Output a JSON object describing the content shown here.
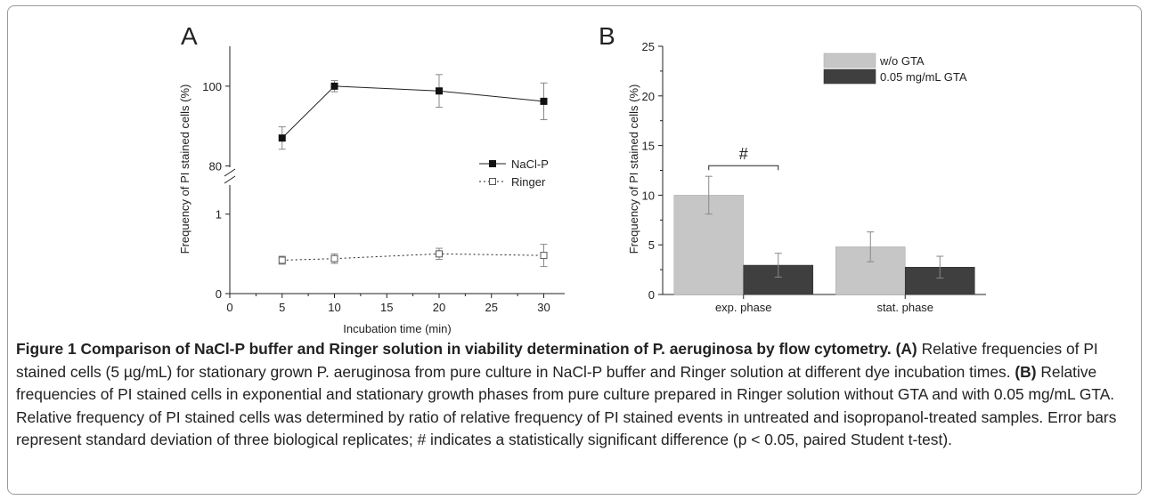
{
  "colors": {
    "frame": "#9a9a9a",
    "axis": "#222222",
    "error_bar": "#888888",
    "bar_light": "#c6c6c6",
    "bar_dark": "#3f3f3f"
  },
  "chart_data": [
    {
      "panel": "A",
      "type": "line",
      "xlabel": "Incubation time (min)",
      "ylabel": "Frequency of PI stained cells (%)",
      "xlim": [
        0,
        32
      ],
      "xticks": [
        "0",
        "5",
        "10",
        "15",
        "20",
        "25",
        "30"
      ],
      "yticks_lower": [
        "0",
        "1"
      ],
      "yticks_upper": [
        "80",
        "100"
      ],
      "ylim_lower": [
        0,
        1.5
      ],
      "ylim_upper": [
        77,
        110
      ],
      "broken_axis": true,
      "legend_position": "right",
      "series": [
        {
          "name": "NaCl-P",
          "segment": "upper",
          "marker": "filled-square",
          "line": "solid",
          "x": [
            5,
            10,
            20,
            30
          ],
          "y": [
            87,
            100,
            98.8,
            96.2
          ],
          "error": [
            2.8,
            1.4,
            4.1,
            4.6
          ]
        },
        {
          "name": "Ringer",
          "segment": "lower",
          "marker": "open-square",
          "line": "dotted",
          "x": [
            5,
            10,
            20,
            30
          ],
          "y": [
            0.42,
            0.44,
            0.5,
            0.48
          ],
          "error": [
            0.05,
            0.06,
            0.07,
            0.14
          ]
        }
      ]
    },
    {
      "panel": "B",
      "type": "bar",
      "ylabel": "Frequency of PI stained cells (%)",
      "categories": [
        "exp. phase",
        "stat. phase"
      ],
      "ylim": [
        0,
        25
      ],
      "yticks": [
        "0",
        "5",
        "10",
        "15",
        "20",
        "25"
      ],
      "legend_position": "top-right",
      "series": [
        {
          "name": "w/o GTA",
          "color": "#c6c6c6",
          "values": [
            10.0,
            4.8
          ],
          "error": [
            1.9,
            1.5
          ]
        },
        {
          "name": "0.05 mg/mL GTA",
          "color": "#3f3f3f",
          "values": [
            2.95,
            2.75
          ],
          "error": [
            1.2,
            1.1
          ]
        }
      ],
      "annotation": {
        "text": "#",
        "between": [
          "exp. phase: w/o GTA",
          "exp. phase: 0.05 mg/mL GTA"
        ]
      }
    }
  ],
  "caption": {
    "figure_label": "Figure 1",
    "title": "Comparison of NaCl-P buffer and Ringer solution in viability determination of P. aeruginosa by flow cytometry.",
    "a_label": "(A)",
    "a_text": "Relative frequencies of PI stained cells (5 µg/mL) for stationary grown P. aeruginosa from pure culture in NaCl-P buffer and Ringer solution at different dye incubation times.",
    "b_label": "(B)",
    "b_text": "Relative frequencies of PI stained cells in exponential and stationary growth phases from pure culture prepared in Ringer solution without GTA and with 0.05 mg/mL GTA. Relative frequency of PI stained cells was determined by ratio of relative frequency of PI stained events in untreated and isopropanol-treated samples. Error bars represent standard deviation of three biological replicates; # indicates a statistically significant difference (p < 0.05, paired Student t-test)."
  }
}
